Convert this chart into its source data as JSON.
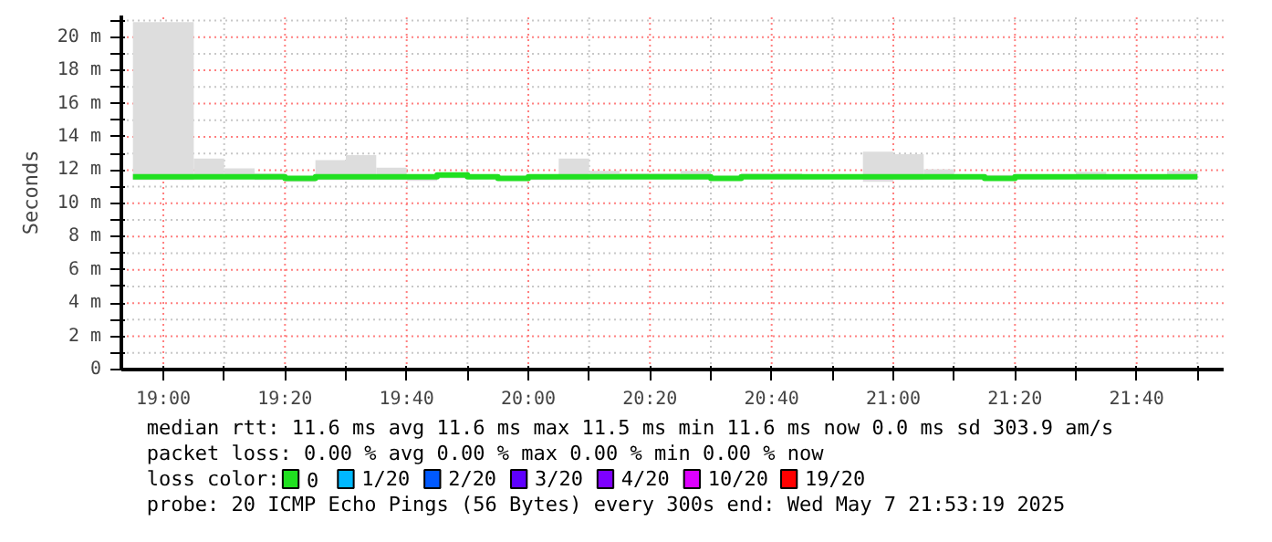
{
  "chart_data": {
    "type": "step",
    "ylabel": "Seconds",
    "x": [
      18.9167,
      19.0,
      19.0833,
      19.1667,
      19.25,
      19.3333,
      19.4167,
      19.5,
      19.5833,
      19.6667,
      19.75,
      19.8333,
      19.9167,
      20.0,
      20.0833,
      20.1667,
      20.25,
      20.3333,
      20.4167,
      20.5,
      20.5833,
      20.6667,
      20.75,
      20.8333,
      20.9167,
      21.0,
      21.0833,
      21.1667,
      21.25,
      21.3333,
      21.4167,
      21.5,
      21.5833,
      21.6667,
      21.75,
      21.8333
    ],
    "series": [
      {
        "name": "0",
        "color": "#20e020",
        "values": [
          11.6,
          11.6,
          11.6,
          11.6,
          11.6,
          11.5,
          11.6,
          11.6,
          11.6,
          11.6,
          11.7,
          11.6,
          11.5,
          11.6,
          11.6,
          11.6,
          11.6,
          11.6,
          11.6,
          11.5,
          11.6,
          11.6,
          11.6,
          11.6,
          11.6,
          11.6,
          11.6,
          11.6,
          11.5,
          11.6,
          11.6,
          11.6,
          11.6,
          11.6,
          11.6,
          11.6
        ],
        "lower": [
          11.4,
          11.4,
          11.5,
          11.5,
          11.4,
          11.3,
          11.4,
          11.4,
          11.4,
          11.35,
          11.5,
          11.5,
          11.35,
          11.4,
          11.4,
          11.5,
          11.5,
          11.5,
          11.45,
          11.4,
          11.5,
          11.5,
          11.5,
          11.5,
          11.3,
          11.4,
          11.45,
          11.5,
          11.4,
          11.5,
          11.5,
          11.5,
          11.5,
          11.5,
          11.5,
          11.5
        ],
        "upper": [
          20.9,
          20.9,
          12.7,
          12.1,
          11.8,
          11.65,
          12.6,
          12.9,
          12.15,
          11.65,
          11.8,
          11.7,
          11.65,
          11.75,
          12.7,
          11.95,
          11.8,
          11.8,
          11.95,
          11.65,
          11.8,
          11.8,
          11.75,
          11.75,
          13.1,
          12.95,
          12.05,
          11.75,
          11.7,
          11.65,
          11.75,
          11.9,
          11.75,
          11.75,
          11.95,
          11.95
        ]
      },
      {
        "name": "1/20",
        "color": "#00b8ff",
        "values": [
          null,
          null,
          null,
          null,
          null,
          null,
          null,
          null,
          null,
          null,
          null,
          null,
          null,
          null,
          null,
          null,
          null,
          null,
          null,
          null,
          null,
          null,
          null,
          null,
          null,
          null,
          null,
          null,
          null,
          null,
          null,
          null,
          null,
          null,
          null,
          null
        ]
      },
      {
        "name": "2/20",
        "color": "#0059ff",
        "values": [
          null,
          null,
          null,
          null,
          null,
          null,
          null,
          null,
          null,
          null,
          null,
          null,
          null,
          null,
          null,
          null,
          null,
          null,
          null,
          null,
          null,
          null,
          null,
          null,
          null,
          null,
          null,
          null,
          null,
          null,
          null,
          null,
          null,
          null,
          null,
          null
        ]
      },
      {
        "name": "3/20",
        "color": "#5e00ff",
        "values": [
          null,
          null,
          null,
          null,
          null,
          null,
          null,
          null,
          null,
          null,
          null,
          null,
          null,
          null,
          null,
          null,
          null,
          null,
          null,
          null,
          null,
          null,
          null,
          null,
          null,
          null,
          null,
          null,
          null,
          null,
          null,
          null,
          null,
          null,
          null,
          null
        ]
      },
      {
        "name": "4/20",
        "color": "#7e00ff",
        "values": [
          null,
          null,
          null,
          null,
          null,
          null,
          null,
          null,
          null,
          null,
          null,
          null,
          null,
          null,
          null,
          null,
          null,
          null,
          null,
          null,
          null,
          null,
          null,
          null,
          null,
          null,
          null,
          null,
          null,
          null,
          null,
          null,
          null,
          null,
          null,
          null
        ]
      },
      {
        "name": "10/20",
        "color": "#dd00ff",
        "values": [
          null,
          null,
          null,
          null,
          null,
          null,
          null,
          null,
          null,
          null,
          null,
          null,
          null,
          null,
          null,
          null,
          null,
          null,
          null,
          null,
          null,
          null,
          null,
          null,
          null,
          null,
          null,
          null,
          null,
          null,
          null,
          null,
          null,
          null,
          null,
          null
        ]
      },
      {
        "name": "19/20",
        "color": "#ff0000",
        "values": [
          null,
          null,
          null,
          null,
          null,
          null,
          null,
          null,
          null,
          null,
          null,
          null,
          null,
          null,
          null,
          null,
          null,
          null,
          null,
          null,
          null,
          null,
          null,
          null,
          null,
          null,
          null,
          null,
          null,
          null,
          null,
          null,
          null,
          null,
          null,
          null
        ]
      }
    ],
    "legend_title": "loss color:",
    "legend": "bottom",
    "grid": true,
    "xlim": [
      18.885,
      21.905
    ],
    "xticks": [
      {
        "value": 19,
        "label": "19:00"
      },
      {
        "value": 19.1667,
        "label": null
      },
      {
        "value": 19.3333,
        "label": "19:20"
      },
      {
        "value": 19.5,
        "label": null
      },
      {
        "value": 19.6667,
        "label": "19:40"
      },
      {
        "value": 19.8333,
        "label": null
      },
      {
        "value": 20,
        "label": "20:00"
      },
      {
        "value": 20.1667,
        "label": null
      },
      {
        "value": 20.3333,
        "label": "20:20"
      },
      {
        "value": 20.5,
        "label": null
      },
      {
        "value": 20.6667,
        "label": "20:40"
      },
      {
        "value": 20.8333,
        "label": null
      },
      {
        "value": 21,
        "label": "21:00"
      },
      {
        "value": 21.1667,
        "label": null
      },
      {
        "value": 21.3333,
        "label": "21:20"
      },
      {
        "value": 21.5,
        "label": null
      },
      {
        "value": 21.6667,
        "label": "21:40"
      },
      {
        "value": 21.8333,
        "label": null
      }
    ],
    "ylim": [
      0,
      21.3
    ],
    "yticks": [
      {
        "value": 0,
        "label": "0"
      },
      {
        "value": 1,
        "label": null
      },
      {
        "value": 2,
        "label": "2 m"
      },
      {
        "value": 3,
        "label": null
      },
      {
        "value": 4,
        "label": "4 m"
      },
      {
        "value": 5,
        "label": null
      },
      {
        "value": 6,
        "label": "6 m"
      },
      {
        "value": 7,
        "label": null
      },
      {
        "value": 8,
        "label": "8 m"
      },
      {
        "value": 9,
        "label": null
      },
      {
        "value": 10,
        "label": "10 m"
      },
      {
        "value": 11,
        "label": null
      },
      {
        "value": 12,
        "label": "12 m"
      },
      {
        "value": 13,
        "label": null
      },
      {
        "value": 14,
        "label": "14 m"
      },
      {
        "value": 15,
        "label": null
      },
      {
        "value": 16,
        "label": "16 m"
      },
      {
        "value": 17,
        "label": null
      },
      {
        "value": 18,
        "label": "18 m"
      },
      {
        "value": 19,
        "label": null
      },
      {
        "value": 20,
        "label": "20 m"
      },
      {
        "value": 21,
        "label": null
      }
    ],
    "annotations": [
      "median rtt:  11.6 ms avg  11.6 ms max  11.5 ms min  11.6 ms now  0.0 ms sd  303.9   am/s",
      "packet loss: 0.00 % avg  0.00 % max  0.00 % min  0.00 % now",
      "probe:       20 ICMP Echo Pings (56 Bytes) every 300s               end: Wed May  7 21:53:19 2025"
    ]
  }
}
